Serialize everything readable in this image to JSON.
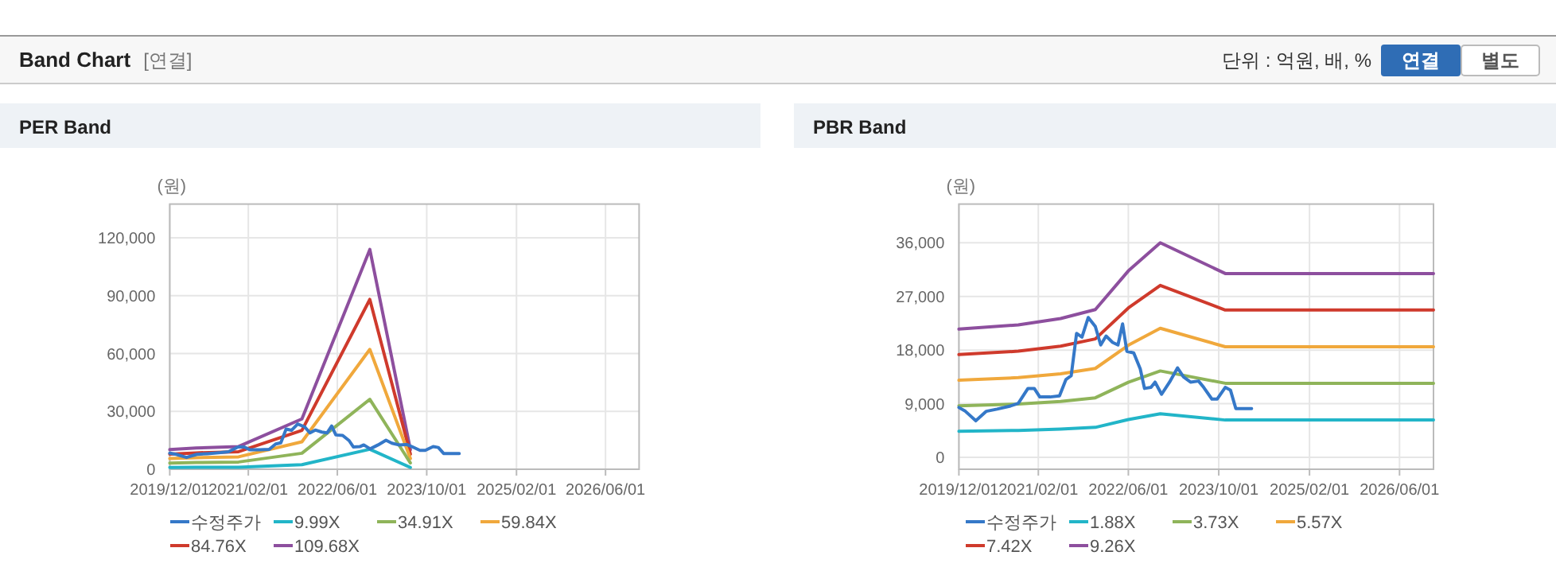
{
  "chart_data": [
    {
      "type": "other",
      "title": "Band Chart",
      "annotations": [
        "[연결]",
        "단위 : 억원, 배, %",
        "연결",
        "별도"
      ]
    },
    {
      "type": "line",
      "title": "PER Band",
      "ylabel": "(원)",
      "grid": true,
      "legend": "bottom",
      "xlim": [
        "2019-12-01",
        "2026-12-01"
      ],
      "xticks": [
        {
          "value": "2019-12-01",
          "label": "2019/12/01"
        },
        {
          "value": "2021-02-01",
          "label": "2021/02/01"
        },
        {
          "value": "2022-06-01",
          "label": "2022/06/01"
        },
        {
          "value": "2023-10-01",
          "label": "2023/10/01"
        },
        {
          "value": "2025-02-01",
          "label": "2025/02/01"
        },
        {
          "value": "2026-06-01",
          "label": "2026/06/01"
        }
      ],
      "ylim": [
        0,
        137500
      ],
      "yticks": [
        0,
        {
          "value": 30000,
          "label": "30,000"
        },
        {
          "value": 60000,
          "label": "60,000"
        },
        {
          "value": 90000,
          "label": "90,000"
        },
        {
          "value": 120000,
          "label": "120,000"
        }
      ],
      "series": [
        {
          "name": "수정주가",
          "color": "#3578c8",
          "x": [
            "2019-12-01",
            "2020-01-05",
            "2020-03-01",
            "2020-04-27",
            "2020-06-24",
            "2020-09-04",
            "2020-10-16",
            "2020-12-07",
            "2021-01-10",
            "2021-02-09",
            "2021-04-05",
            "2021-05-26",
            "2021-06-30",
            "2021-07-28",
            "2021-08-26",
            "2021-09-24",
            "2021-10-28",
            "2021-12-05",
            "2022-01-03",
            "2022-02-01",
            "2022-03-08",
            "2022-04-06",
            "2022-05-01",
            "2022-05-24",
            "2022-06-30",
            "2022-08-04",
            "2022-08-27",
            "2022-10-01",
            "2022-10-23",
            "2022-11-27",
            "2023-01-09",
            "2023-02-21",
            "2023-03-25",
            "2023-05-02",
            "2023-06-14",
            "2023-07-12",
            "2023-08-25",
            "2023-09-23",
            "2023-11-05",
            "2023-12-03",
            "2024-01-01",
            "2024-03-26"
          ],
          "values": [
            8360,
            7730,
            6130,
            7730,
            8090,
            8620,
            9070,
            11560,
            11560,
            10130,
            10130,
            10310,
            13070,
            13690,
            20800,
            20180,
            23470,
            21960,
            18850,
            20360,
            19290,
            18850,
            22400,
            17780,
            17510,
            14850,
            11560,
            11740,
            12620,
            10580,
            12620,
            15020,
            13510,
            12620,
            12800,
            11740,
            9780,
            9780,
            11740,
            11290,
            8180,
            8180
          ]
        },
        {
          "name": "9.99X",
          "color": "#22b5c8",
          "x": [
            "2019-12-01",
            "2020-04-23",
            "2020-12-10",
            "2021-11-20",
            "2022-11-25",
            "2023-07-04"
          ],
          "values": [
            925,
            1000,
            1075,
            2380,
            10380,
            925
          ]
        },
        {
          "name": "34.91X",
          "color": "#8fb45a",
          "x": [
            "2019-12-01",
            "2020-04-23",
            "2020-12-10",
            "2021-11-20",
            "2022-11-25",
            "2023-07-04"
          ],
          "values": [
            3230,
            3500,
            3760,
            8310,
            36270,
            3230
          ]
        },
        {
          "name": "59.84X",
          "color": "#f0a83c",
          "x": [
            "2019-12-01",
            "2020-04-23",
            "2020-12-10",
            "2021-11-20",
            "2022-11-25",
            "2023-07-04"
          ],
          "values": [
            5540,
            6000,
            6440,
            14240,
            62180,
            5540
          ]
        },
        {
          "name": "84.76X",
          "color": "#cf3a2c",
          "x": [
            "2019-12-01",
            "2020-04-23",
            "2020-12-10",
            "2021-11-20",
            "2022-11-25",
            "2023-07-04"
          ],
          "values": [
            7850,
            8500,
            9120,
            20160,
            88070,
            7850
          ]
        },
        {
          "name": "109.68X",
          "color": "#8d4f9e",
          "x": [
            "2019-12-01",
            "2020-04-23",
            "2020-12-10",
            "2021-11-20",
            "2022-11-25",
            "2023-07-04"
          ],
          "values": [
            10160,
            11000,
            11800,
            26090,
            113960,
            10160
          ]
        }
      ]
    },
    {
      "type": "line",
      "title": "PBR Band",
      "ylabel": "(원)",
      "grid": true,
      "legend": "bottom",
      "xlim": [
        "2019-12-01",
        "2026-12-01"
      ],
      "xticks": [
        {
          "value": "2019-12-01",
          "label": "2019/12/01"
        },
        {
          "value": "2021-02-01",
          "label": "2021/02/01"
        },
        {
          "value": "2022-06-01",
          "label": "2022/06/01"
        },
        {
          "value": "2023-10-01",
          "label": "2023/10/01"
        },
        {
          "value": "2025-02-01",
          "label": "2025/02/01"
        },
        {
          "value": "2026-06-01",
          "label": "2026/06/01"
        }
      ],
      "ylim": [
        -2000,
        42500
      ],
      "yticks": [
        0,
        {
          "value": 9000,
          "label": "9,000"
        },
        {
          "value": 18000,
          "label": "18,000"
        },
        {
          "value": 27000,
          "label": "27,000"
        },
        {
          "value": 36000,
          "label": "36,000"
        }
      ],
      "series": [
        {
          "name": "수정주가",
          "color": "#3578c8",
          "x": [
            "2019-12-01",
            "2020-01-05",
            "2020-03-01",
            "2020-04-27",
            "2020-06-24",
            "2020-09-04",
            "2020-10-16",
            "2020-12-07",
            "2021-01-10",
            "2021-02-09",
            "2021-04-05",
            "2021-05-26",
            "2021-06-30",
            "2021-07-28",
            "2021-08-26",
            "2021-09-24",
            "2021-10-28",
            "2021-12-05",
            "2022-01-03",
            "2022-02-01",
            "2022-03-08",
            "2022-04-06",
            "2022-05-01",
            "2022-05-24",
            "2022-06-30",
            "2022-08-04",
            "2022-08-27",
            "2022-10-01",
            "2022-10-23",
            "2022-11-27",
            "2023-01-09",
            "2023-02-21",
            "2023-03-25",
            "2023-05-02",
            "2023-06-14",
            "2023-07-12",
            "2023-08-25",
            "2023-09-23",
            "2023-11-05",
            "2023-12-03",
            "2024-01-01",
            "2024-03-26"
          ],
          "values": [
            8360,
            7730,
            6130,
            7730,
            8090,
            8620,
            9070,
            11560,
            11560,
            10130,
            10130,
            10310,
            13070,
            13690,
            20800,
            20180,
            23470,
            21960,
            18850,
            20360,
            19290,
            18850,
            22400,
            17780,
            17510,
            14850,
            11560,
            11740,
            12620,
            10580,
            12620,
            15020,
            13510,
            12620,
            12800,
            11740,
            9780,
            9780,
            11740,
            11290,
            8180,
            8180
          ]
        },
        {
          "name": "1.88X",
          "color": "#22b5c8",
          "x": [
            "2019-12-01",
            "2020-10-16",
            "2021-06-01",
            "2021-12-05",
            "2022-06-01",
            "2022-11-20",
            "2023-11-05",
            "2026-12-01"
          ],
          "values": [
            4370,
            4510,
            4730,
            5030,
            6350,
            7310,
            6260,
            6260
          ]
        },
        {
          "name": "3.73X",
          "color": "#8fb45a",
          "x": [
            "2019-12-01",
            "2020-10-16",
            "2021-06-01",
            "2021-12-05",
            "2022-06-01",
            "2022-11-20",
            "2023-11-05",
            "2026-12-01"
          ],
          "values": [
            8660,
            8950,
            9380,
            9990,
            12600,
            14500,
            12430,
            12430
          ]
        },
        {
          "name": "5.57X",
          "color": "#f0a83c",
          "x": [
            "2019-12-01",
            "2020-10-16",
            "2021-06-01",
            "2021-12-05",
            "2022-06-01",
            "2022-11-20",
            "2023-11-05",
            "2026-12-01"
          ],
          "values": [
            12940,
            13370,
            14010,
            14920,
            18820,
            21660,
            18560,
            18560
          ]
        },
        {
          "name": "7.42X",
          "color": "#cf3a2c",
          "x": [
            "2019-12-01",
            "2020-10-16",
            "2021-06-01",
            "2021-12-05",
            "2022-06-01",
            "2022-11-20",
            "2023-11-05",
            "2026-12-01"
          ],
          "values": [
            17240,
            17810,
            18660,
            19870,
            25070,
            28850,
            24720,
            24720
          ]
        },
        {
          "name": "9.26X",
          "color": "#8d4f9e",
          "x": [
            "2019-12-01",
            "2020-10-16",
            "2021-06-01",
            "2021-12-05",
            "2022-06-01",
            "2022-11-20",
            "2023-11-05",
            "2026-12-01"
          ],
          "values": [
            21510,
            22220,
            23290,
            24800,
            31290,
            36000,
            30850,
            30850
          ]
        }
      ]
    }
  ]
}
